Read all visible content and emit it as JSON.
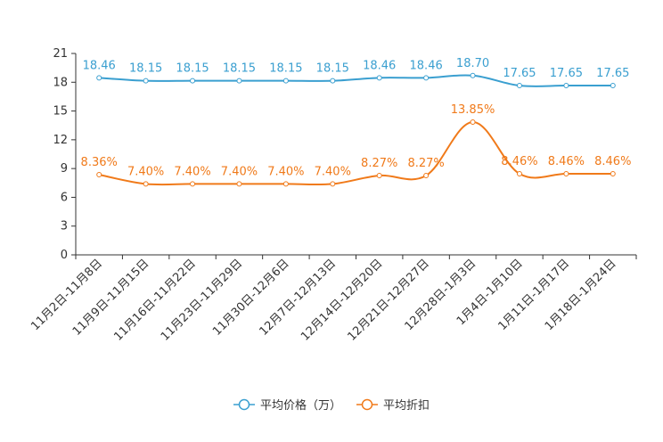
{
  "chart_data": {
    "type": "line",
    "categories": [
      "11月2日-11月8日",
      "11月9日-11月15日",
      "11月16日-11月22日",
      "11月23日-11月29日",
      "11月30日-12月6日",
      "12月7日-12月13日",
      "12月14日-12月20日",
      "12月21日-12月27日",
      "12月28日-1月3日",
      "1月4日-1月10日",
      "1月11日-1月17日",
      "1月18日-1月24日"
    ],
    "series": [
      {
        "name": "平均价格（万）",
        "color": "#3a9fd0",
        "values": [
          18.46,
          18.15,
          18.15,
          18.15,
          18.15,
          18.15,
          18.46,
          18.46,
          18.7,
          17.65,
          17.65,
          17.65
        ],
        "labels": [
          "18.46",
          "18.15",
          "18.15",
          "18.15",
          "18.15",
          "18.15",
          "18.46",
          "18.46",
          "18.70",
          "17.65",
          "17.65",
          "17.65"
        ]
      },
      {
        "name": "平均折扣",
        "color": "#f07a1a",
        "values": [
          8.36,
          7.4,
          7.4,
          7.4,
          7.4,
          7.4,
          8.27,
          8.27,
          13.85,
          8.46,
          8.46,
          8.46
        ],
        "labels": [
          "8.36%",
          "7.40%",
          "7.40%",
          "7.40%",
          "7.40%",
          "7.40%",
          "8.27%",
          "8.27%",
          "13.85%",
          "8.46%",
          "8.46%",
          "8.46%"
        ]
      }
    ],
    "yticks": [
      0,
      3,
      6,
      9,
      12,
      15,
      18,
      21
    ],
    "ylim": [
      0,
      21
    ],
    "legend_position": "bottom-center",
    "grid": false
  }
}
